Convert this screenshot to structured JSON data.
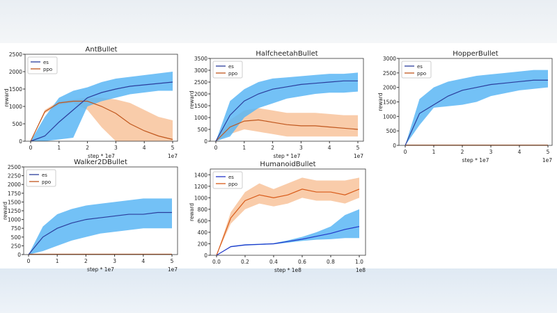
{
  "chart_data": [
    {
      "type": "area",
      "title": "AntBullet",
      "xlabel": "step * 1e7",
      "ylabel": "reward",
      "x_exponent": "1e7",
      "xlim": [
        0,
        5
      ],
      "ylim": [
        0,
        2500
      ],
      "xticks": [
        "0",
        "1",
        "2",
        "3",
        "4",
        "5"
      ],
      "yticks": [
        "0",
        "500",
        "1000",
        "1500",
        "2000",
        "2500"
      ],
      "legend": "top-left",
      "x": [
        0,
        0.5,
        1,
        1.5,
        2,
        2.5,
        3,
        3.5,
        4,
        4.5,
        5
      ],
      "series": [
        {
          "name": "es",
          "mean": [
            0,
            150,
            550,
            900,
            1250,
            1400,
            1500,
            1580,
            1620,
            1660,
            1700
          ],
          "low": [
            0,
            0,
            50,
            100,
            1000,
            1150,
            1250,
            1350,
            1400,
            1450,
            1450
          ],
          "high": [
            0,
            700,
            1250,
            1450,
            1550,
            1700,
            1800,
            1850,
            1900,
            1950,
            2000
          ]
        },
        {
          "name": "ppo",
          "mean": [
            0,
            850,
            1100,
            1150,
            1150,
            1000,
            800,
            500,
            300,
            150,
            50
          ],
          "low": [
            0,
            800,
            1050,
            1100,
            900,
            400,
            0,
            0,
            0,
            0,
            0
          ],
          "high": [
            0,
            900,
            1150,
            1200,
            1250,
            1250,
            1200,
            1100,
            900,
            700,
            600
          ]
        }
      ]
    },
    {
      "type": "area",
      "title": "HalfcheetahBullet",
      "xlabel": "step * 1e7",
      "ylabel": "reward",
      "x_exponent": "1e7",
      "xlim": [
        0,
        5
      ],
      "ylim": [
        0,
        3500
      ],
      "xticks": [
        "0",
        "1",
        "2",
        "3",
        "4",
        "5"
      ],
      "yticks": [
        "0",
        "500",
        "1000",
        "1500",
        "2000",
        "2500",
        "3000",
        "3500"
      ],
      "legend": "top-left",
      "x": [
        0,
        0.5,
        1,
        1.5,
        2,
        2.5,
        3,
        3.5,
        4,
        4.5,
        5
      ],
      "series": [
        {
          "name": "es",
          "mean": [
            0,
            1100,
            1700,
            2000,
            2200,
            2300,
            2400,
            2450,
            2500,
            2550,
            2550
          ],
          "low": [
            0,
            200,
            1000,
            1400,
            1600,
            1800,
            1900,
            2000,
            2050,
            2050,
            2100
          ],
          "high": [
            0,
            1700,
            2200,
            2500,
            2650,
            2700,
            2750,
            2800,
            2850,
            2850,
            2900
          ]
        },
        {
          "name": "ppo",
          "mean": [
            0,
            600,
            850,
            900,
            800,
            700,
            650,
            650,
            600,
            550,
            500
          ],
          "low": [
            0,
            300,
            500,
            400,
            300,
            200,
            200,
            200,
            200,
            200,
            200
          ],
          "high": [
            0,
            900,
            1300,
            1400,
            1300,
            1200,
            1200,
            1200,
            1150,
            1100,
            1100
          ]
        }
      ]
    },
    {
      "type": "area",
      "title": "HopperBullet",
      "xlabel": "step * 1e7",
      "ylabel": "reward",
      "x_exponent": "1e7",
      "xlim": [
        0,
        5
      ],
      "ylim": [
        0,
        3000
      ],
      "xticks": [
        "0",
        "1",
        "2",
        "3",
        "4",
        "5"
      ],
      "yticks": [
        "0",
        "500",
        "1000",
        "1500",
        "2000",
        "2500",
        "3000"
      ],
      "legend": "top-left",
      "x": [
        0,
        0.5,
        1,
        1.5,
        2,
        2.5,
        3,
        3.5,
        4,
        4.5,
        5
      ],
      "series": [
        {
          "name": "es",
          "mean": [
            0,
            1100,
            1400,
            1700,
            1900,
            2000,
            2100,
            2150,
            2200,
            2250,
            2250
          ],
          "low": [
            0,
            700,
            1300,
            1350,
            1400,
            1500,
            1700,
            1800,
            1900,
            1950,
            2000
          ],
          "high": [
            0,
            1600,
            2000,
            2200,
            2300,
            2400,
            2450,
            2500,
            2550,
            2600,
            2600
          ]
        },
        {
          "name": "ppo",
          "mean": [
            10,
            10,
            10,
            10,
            10,
            10,
            10,
            10,
            10,
            10,
            10
          ],
          "low": [
            0,
            0,
            0,
            0,
            0,
            0,
            0,
            0,
            0,
            0,
            0
          ],
          "high": [
            20,
            20,
            20,
            20,
            20,
            20,
            20,
            20,
            20,
            20,
            20
          ]
        }
      ]
    },
    {
      "type": "area",
      "title": "Walker2DBullet",
      "xlabel": "step * 1e7",
      "ylabel": "reward",
      "x_exponent": "1e7",
      "xlim": [
        0,
        5
      ],
      "ylim": [
        0,
        2500
      ],
      "xticks": [
        "0",
        "1",
        "2",
        "3",
        "4",
        "5"
      ],
      "yticks": [
        "0",
        "250",
        "500",
        "750",
        "1000",
        "1250",
        "1500",
        "1750",
        "2000",
        "2250",
        "2500"
      ],
      "legend": "top-left",
      "x": [
        0,
        0.5,
        1,
        1.5,
        2,
        2.5,
        3,
        3.5,
        4,
        4.5,
        5
      ],
      "series": [
        {
          "name": "es",
          "mean": [
            0,
            500,
            750,
            900,
            1000,
            1050,
            1100,
            1150,
            1150,
            1200,
            1200
          ],
          "low": [
            0,
            100,
            250,
            400,
            500,
            600,
            650,
            700,
            750,
            750,
            750
          ],
          "high": [
            0,
            800,
            1150,
            1300,
            1400,
            1450,
            1500,
            1550,
            1600,
            1600,
            1600
          ]
        },
        {
          "name": "ppo",
          "mean": [
            10,
            10,
            10,
            10,
            10,
            10,
            10,
            10,
            10,
            10,
            10
          ],
          "low": [
            0,
            0,
            0,
            0,
            0,
            0,
            0,
            0,
            0,
            0,
            0
          ],
          "high": [
            20,
            20,
            20,
            20,
            20,
            20,
            20,
            20,
            20,
            20,
            20
          ]
        }
      ]
    },
    {
      "type": "area",
      "title": "HumanoidBullet",
      "xlabel": "step * 1e8",
      "ylabel": "reward",
      "x_exponent": "1e8",
      "xlim": [
        0,
        1.0
      ],
      "ylim": [
        0,
        1500
      ],
      "xticks": [
        "0.0",
        "0.2",
        "0.4",
        "0.6",
        "0.8",
        "1.0"
      ],
      "yticks": [
        "0",
        "200",
        "400",
        "600",
        "800",
        "1000",
        "1200",
        "1400"
      ],
      "legend": "top-left",
      "x": [
        0,
        0.1,
        0.2,
        0.3,
        0.4,
        0.5,
        0.6,
        0.7,
        0.8,
        0.9,
        1.0
      ],
      "series": [
        {
          "name": "es",
          "mean": [
            0,
            150,
            180,
            190,
            200,
            240,
            280,
            330,
            380,
            450,
            500
          ],
          "low": [
            0,
            140,
            170,
            180,
            190,
            220,
            250,
            270,
            280,
            300,
            300
          ],
          "high": [
            0,
            160,
            190,
            200,
            210,
            260,
            320,
            400,
            500,
            700,
            800
          ]
        },
        {
          "name": "ppo",
          "mean": [
            0,
            650,
            950,
            1050,
            1000,
            1050,
            1150,
            1100,
            1100,
            1050,
            1150
          ],
          "low": [
            0,
            550,
            800,
            900,
            850,
            900,
            1000,
            950,
            950,
            900,
            1000
          ],
          "high": [
            0,
            750,
            1100,
            1250,
            1150,
            1250,
            1350,
            1300,
            1300,
            1300,
            1350
          ]
        }
      ]
    }
  ],
  "colors": {
    "es_fill": "#5bb6f4",
    "es_line": "#2b3d9c",
    "ppo_fill": "#f7bb8e",
    "ppo_line": "#c0561c",
    "humanoid_es_line": "#2236c8",
    "humanoid_ppo_line": "#d85a18"
  }
}
